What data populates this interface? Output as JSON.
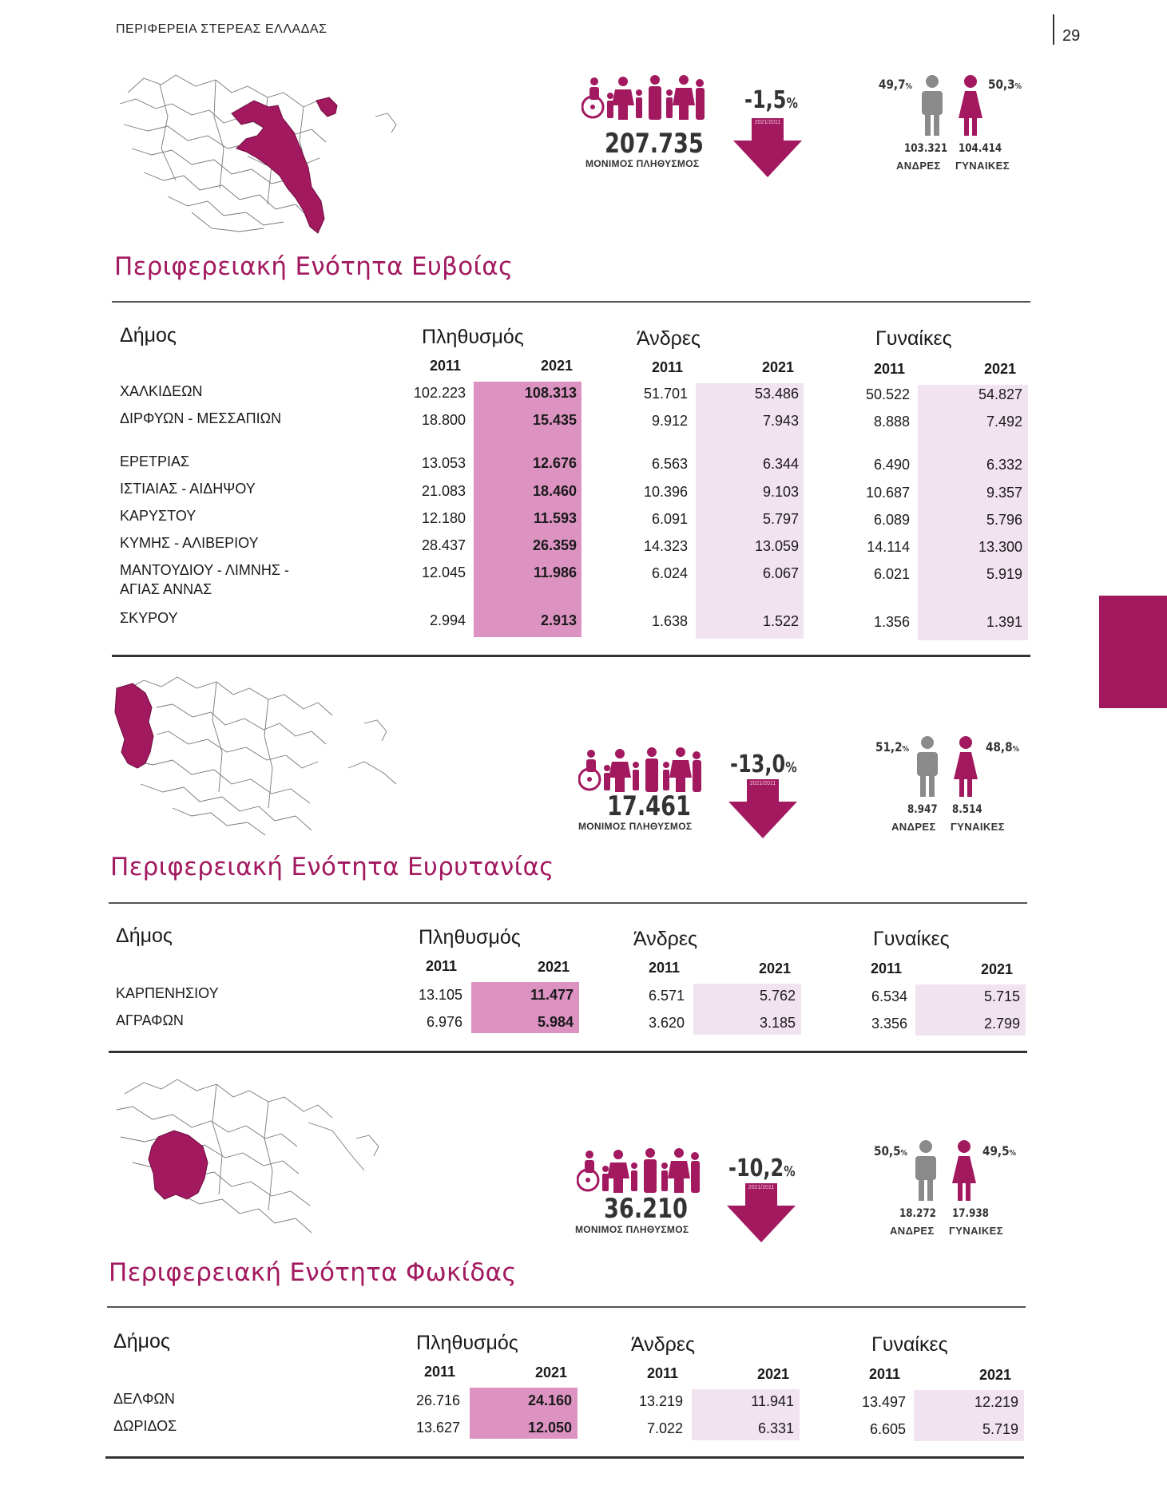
{
  "header": {
    "title": "ΠΕΡΙΦΕΡΕΙΑ ΣΤΕΡΕΑΣ ΕΛΛΑΔΑΣ",
    "page_number": "29"
  },
  "colors": {
    "accent": "#a2195f",
    "pop_shade": "#dd93c2",
    "sex_shade": "#f2e3f1",
    "male_icon": "#8a8a8a"
  },
  "common": {
    "pop_caption": "ΜΟΝΙΜΟΣ ΠΛΗΘΥΣΜΟΣ",
    "period": "2021/2011",
    "men_label": "ΑΝΔΡΕΣ",
    "women_label": "ΓΥΝΑΙΚΕΣ",
    "pct_unit": "%",
    "col_muni": "Δήμος",
    "col_pop": "Πληθυσμός",
    "col_men": "Άνδρες",
    "col_women": "Γυναίκες",
    "year_a": "2011",
    "year_b": "2021"
  },
  "sections": [
    {
      "title": "Περιφερειακή Ενότητα Ευβοίας",
      "population": "207.735",
      "change": "-1,5",
      "male_pct": "49,7",
      "female_pct": "50,3",
      "men": "103.321",
      "women": "104.414",
      "rows": [
        {
          "name": "ΧΑΛΚΙΔΕΩΝ",
          "p11": "102.223",
          "p21": "108.313",
          "m11": "51.701",
          "m21": "53.486",
          "w11": "50.522",
          "w21": "54.827"
        },
        {
          "name": "ΔΙΡΦΥΩΝ - ΜΕΣΣΑΠΙΩΝ",
          "p11": "18.800",
          "p21": "15.435",
          "m11": "9.912",
          "m21": "7.943",
          "w11": "8.888",
          "w21": "7.492"
        },
        {
          "name": "ΕΡΕΤΡΙΑΣ",
          "p11": "13.053",
          "p21": "12.676",
          "m11": "6.563",
          "m21": "6.344",
          "w11": "6.490",
          "w21": "6.332"
        },
        {
          "name": "ΙΣΤΙΑΙΑΣ - ΑΙΔΗΨΟΥ",
          "p11": "21.083",
          "p21": "18.460",
          "m11": "10.396",
          "m21": "9.103",
          "w11": "10.687",
          "w21": "9.357"
        },
        {
          "name": "ΚΑΡΥΣΤΟΥ",
          "p11": "12.180",
          "p21": "11.593",
          "m11": "6.091",
          "m21": "5.797",
          "w11": "6.089",
          "w21": "5.796"
        },
        {
          "name": "ΚΥΜΗΣ - ΑΛΙΒΕΡΙΟΥ",
          "p11": "28.437",
          "p21": "26.359",
          "m11": "14.323",
          "m21": "13.059",
          "w11": "14.114",
          "w21": "13.300"
        },
        {
          "name": "ΜΑΝΤΟΥΔΙΟΥ - ΛΙΜΝΗΣ - ΑΓΙΑΣ ΑΝΝΑΣ",
          "p11": "12.045",
          "p21": "11.986",
          "m11": "6.024",
          "m21": "6.067",
          "w11": "6.021",
          "w21": "5.919"
        },
        {
          "name": "ΣΚΥΡΟΥ",
          "p11": "2.994",
          "p21": "2.913",
          "m11": "1.638",
          "m21": "1.522",
          "w11": "1.356",
          "w21": "1.391"
        }
      ]
    },
    {
      "title": "Περιφερειακή Ενότητα Ευρυτανίας",
      "population": "17.461",
      "change": "-13,0",
      "male_pct": "51,2",
      "female_pct": "48,8",
      "men": "8.947",
      "women": "8.514",
      "rows": [
        {
          "name": "ΚΑΡΠΕΝΗΣΙΟΥ",
          "p11": "13.105",
          "p21": "11.477",
          "m11": "6.571",
          "m21": "5.762",
          "w11": "6.534",
          "w21": "5.715"
        },
        {
          "name": "ΑΓΡΑΦΩΝ",
          "p11": "6.976",
          "p21": "5.984",
          "m11": "3.620",
          "m21": "3.185",
          "w11": "3.356",
          "w21": "2.799"
        }
      ]
    },
    {
      "title": "Περιφερειακή Ενότητα Φωκίδας",
      "population": "36.210",
      "change": "-10,2",
      "male_pct": "50,5",
      "female_pct": "49,5",
      "men": "18.272",
      "women": "17.938",
      "rows": [
        {
          "name": "ΔΕΛΦΩΝ",
          "p11": "26.716",
          "p21": "24.160",
          "m11": "13.219",
          "m21": "11.941",
          "w11": "13.497",
          "w21": "12.219"
        },
        {
          "name": "ΔΩΡΙΔΟΣ",
          "p11": "13.627",
          "p21": "12.050",
          "m11": "7.022",
          "m21": "6.331",
          "w11": "6.605",
          "w21": "5.719"
        }
      ]
    }
  ]
}
